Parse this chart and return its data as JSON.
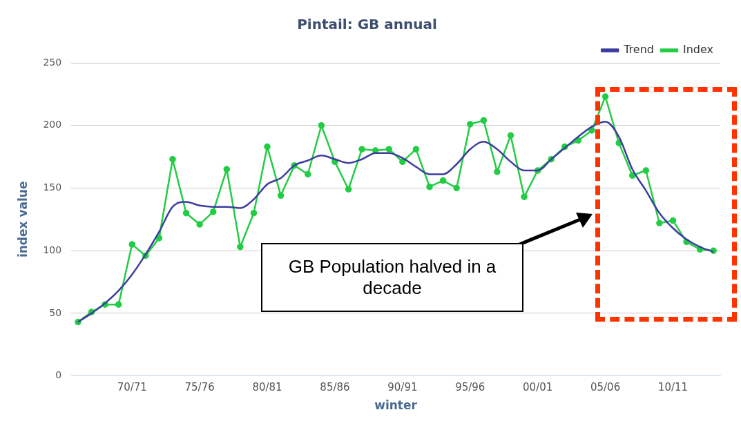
{
  "chart_data": {
    "type": "line",
    "title": "Pintail: GB annual",
    "xlabel": "winter",
    "ylabel": "index value",
    "categories": [
      null,
      null,
      null,
      null,
      "70/71",
      null,
      null,
      null,
      null,
      "75/76",
      null,
      null,
      null,
      null,
      "80/81",
      null,
      null,
      null,
      null,
      "85/86",
      null,
      null,
      null,
      null,
      "90/91",
      null,
      null,
      null,
      null,
      "95/96",
      null,
      null,
      null,
      null,
      "00/01",
      null,
      null,
      null,
      null,
      "05/06",
      null,
      null,
      null,
      null,
      "10/11",
      null,
      null,
      null
    ],
    "series": [
      {
        "name": "Index",
        "color": "#22cc44",
        "marker": "circle",
        "values": [
          43,
          51,
          57,
          57,
          105,
          96,
          110,
          173,
          130,
          121,
          131,
          165,
          103,
          130,
          183,
          144,
          168,
          161,
          200,
          171,
          149,
          181,
          180,
          181,
          171,
          181,
          151,
          156,
          150,
          201,
          204,
          163,
          192,
          143,
          164,
          173,
          183,
          188,
          196,
          223,
          186,
          160,
          164,
          122,
          124,
          107,
          101,
          100
        ]
      },
      {
        "name": "Trend",
        "color": "#3d3d9e",
        "marker": "none",
        "values": [
          43,
          50,
          58,
          68,
          81,
          97,
          115,
          135,
          139,
          136,
          135,
          135,
          134,
          141,
          153,
          158,
          168,
          172,
          176,
          173,
          170,
          173,
          178,
          178,
          174,
          167,
          161,
          161,
          169,
          181,
          187,
          181,
          171,
          164,
          164,
          173,
          182,
          191,
          199,
          203,
          191,
          165,
          148,
          130,
          118,
          109,
          103,
          99
        ]
      }
    ],
    "ylim": [
      0,
      250
    ],
    "yticks": [
      0,
      50,
      100,
      150,
      200,
      250
    ],
    "grid": "y",
    "legend": "top right",
    "annotations": [
      "GB Population halved in a decade"
    ]
  }
}
